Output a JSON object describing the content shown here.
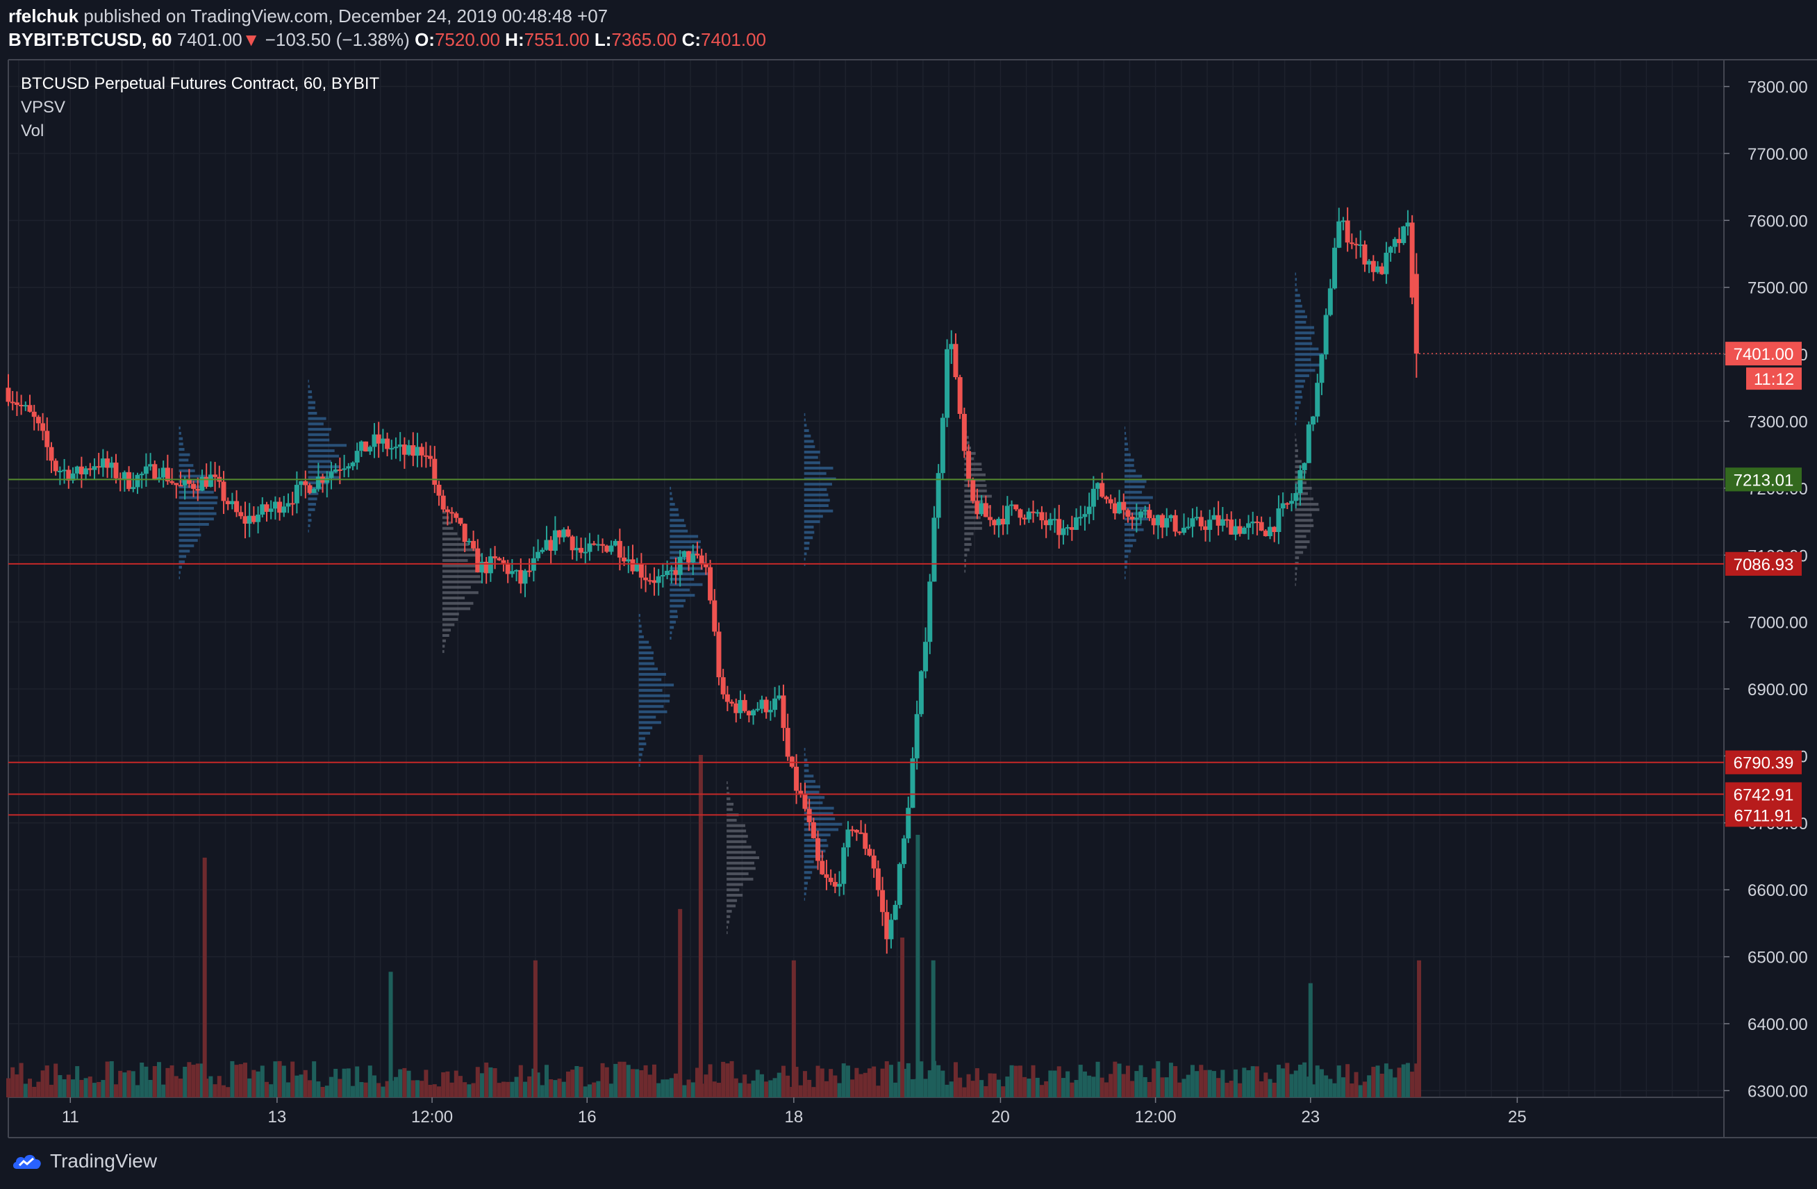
{
  "header": {
    "author": "rfelchuk",
    "published_text": " published on TradingView.com, December 24, 2019 00:48:48 +07",
    "symbol": "BYBIT:BTCUSD, 60",
    "last": "7401.00",
    "change": "−103.50 (−1.38%)",
    "o_label": "O:",
    "o": "7520.00",
    "h_label": "H:",
    "h": "7551.00",
    "l_label": "L:",
    "l": "7365.00",
    "c_label": "C:",
    "c": "7401.00"
  },
  "legend": {
    "title": "BTCUSD Perpetual Futures Contract, 60, BYBIT",
    "vpsv": "VPSV",
    "vol": "Vol"
  },
  "footer": {
    "brand": "TradingView"
  },
  "colors": {
    "background": "#131722",
    "up": "#26a69a",
    "down": "#ef5350",
    "up_vol": "#1e5f5b",
    "down_vol": "#6e2a2e",
    "grid": "#1e222d",
    "level_red": "#b71c1c",
    "level_green": "#33691e",
    "vp": "#2f5f8f",
    "vp_gray": "#5d606b"
  },
  "chart_data": {
    "type": "candlestick",
    "timeframe": "60",
    "y_axis": {
      "range": [
        6290,
        7840
      ],
      "ticks": [
        "7800.00",
        "7700.00",
        "7600.00",
        "7500.00",
        "7400.00",
        "7300.00",
        "7200.00",
        "7100.00",
        "7000.00",
        "6900.00",
        "6800.00",
        "6700.00",
        "6600.00",
        "6500.00",
        "6400.00",
        "6300.00"
      ]
    },
    "x_axis": {
      "ticks": [
        {
          "label": "11",
          "day": 11.0
        },
        {
          "label": "13",
          "day": 13.0
        },
        {
          "label": "12:00",
          "day": 14.5
        },
        {
          "label": "16",
          "day": 16.0
        },
        {
          "label": "18",
          "day": 18.0
        },
        {
          "label": "20",
          "day": 20.0
        },
        {
          "label": "12:00",
          "day": 21.5
        },
        {
          "label": "23",
          "day": 23.0
        },
        {
          "label": "25",
          "day": 25.0
        }
      ],
      "range_days": [
        10.4,
        27.0
      ]
    },
    "levels": [
      {
        "price": 7213.01,
        "label": "7213.01",
        "color": "green"
      },
      {
        "price": 7086.93,
        "label": "7086.93",
        "color": "red"
      },
      {
        "price": 6790.39,
        "label": "6790.39",
        "color": "red"
      },
      {
        "price": 6742.91,
        "label": "6742.91",
        "color": "red"
      },
      {
        "price": 6711.91,
        "label": "6711.91",
        "color": "red"
      }
    ],
    "last_price": {
      "value": 7401.0,
      "label": "7401.00",
      "countdown": "11:12"
    },
    "path": [
      [
        10.4,
        7350
      ],
      [
        10.7,
        7300
      ],
      [
        10.9,
        7230
      ],
      [
        11.1,
        7220
      ],
      [
        11.3,
        7240
      ],
      [
        11.6,
        7210
      ],
      [
        11.9,
        7230
      ],
      [
        12.1,
        7200
      ],
      [
        12.4,
        7215
      ],
      [
        12.7,
        7150
      ],
      [
        13.0,
        7170
      ],
      [
        13.3,
        7200
      ],
      [
        13.6,
        7230
      ],
      [
        13.8,
        7250
      ],
      [
        14.0,
        7270
      ],
      [
        14.3,
        7250
      ],
      [
        14.5,
        7260
      ],
      [
        14.6,
        7180
      ],
      [
        14.8,
        7140
      ],
      [
        15.0,
        7080
      ],
      [
        15.2,
        7090
      ],
      [
        15.4,
        7060
      ],
      [
        15.6,
        7100
      ],
      [
        15.8,
        7140
      ],
      [
        16.0,
        7100
      ],
      [
        16.3,
        7120
      ],
      [
        16.6,
        7070
      ],
      [
        16.8,
        7060
      ],
      [
        17.0,
        7100
      ],
      [
        17.2,
        7080
      ],
      [
        17.35,
        6880
      ],
      [
        17.6,
        6870
      ],
      [
        17.9,
        6880
      ],
      [
        18.0,
        6780
      ],
      [
        18.15,
        6720
      ],
      [
        18.3,
        6620
      ],
      [
        18.45,
        6600
      ],
      [
        18.6,
        6700
      ],
      [
        18.8,
        6650
      ],
      [
        18.95,
        6520
      ],
      [
        19.1,
        6660
      ],
      [
        19.3,
        6950
      ],
      [
        19.45,
        7250
      ],
      [
        19.55,
        7450
      ],
      [
        19.65,
        7300
      ],
      [
        19.75,
        7180
      ],
      [
        19.95,
        7150
      ],
      [
        20.2,
        7170
      ],
      [
        20.45,
        7150
      ],
      [
        20.7,
        7130
      ],
      [
        20.95,
        7200
      ],
      [
        21.2,
        7170
      ],
      [
        21.5,
        7160
      ],
      [
        21.8,
        7140
      ],
      [
        22.1,
        7150
      ],
      [
        22.4,
        7140
      ],
      [
        22.65,
        7140
      ],
      [
        22.9,
        7190
      ],
      [
        23.05,
        7300
      ],
      [
        23.15,
        7390
      ],
      [
        23.3,
        7600
      ],
      [
        23.5,
        7560
      ],
      [
        23.7,
        7520
      ],
      [
        23.85,
        7560
      ],
      [
        24.0,
        7590
      ],
      [
        24.05,
        7401
      ]
    ],
    "volume_spikes": [
      {
        "day": 12.3,
        "value": 0.42,
        "up": false
      },
      {
        "day": 14.1,
        "value": 0.22,
        "up": true
      },
      {
        "day": 15.5,
        "value": 0.24,
        "up": false
      },
      {
        "day": 16.9,
        "value": 0.33,
        "up": false
      },
      {
        "day": 17.1,
        "value": 0.6,
        "up": false
      },
      {
        "day": 18.0,
        "value": 0.24,
        "up": false
      },
      {
        "day": 19.05,
        "value": 0.28,
        "up": false
      },
      {
        "day": 19.2,
        "value": 0.46,
        "up": true
      },
      {
        "day": 19.35,
        "value": 0.24,
        "up": true
      },
      {
        "day": 23.0,
        "value": 0.2,
        "up": true
      },
      {
        "day": 24.05,
        "value": 0.24,
        "up": false
      }
    ]
  }
}
